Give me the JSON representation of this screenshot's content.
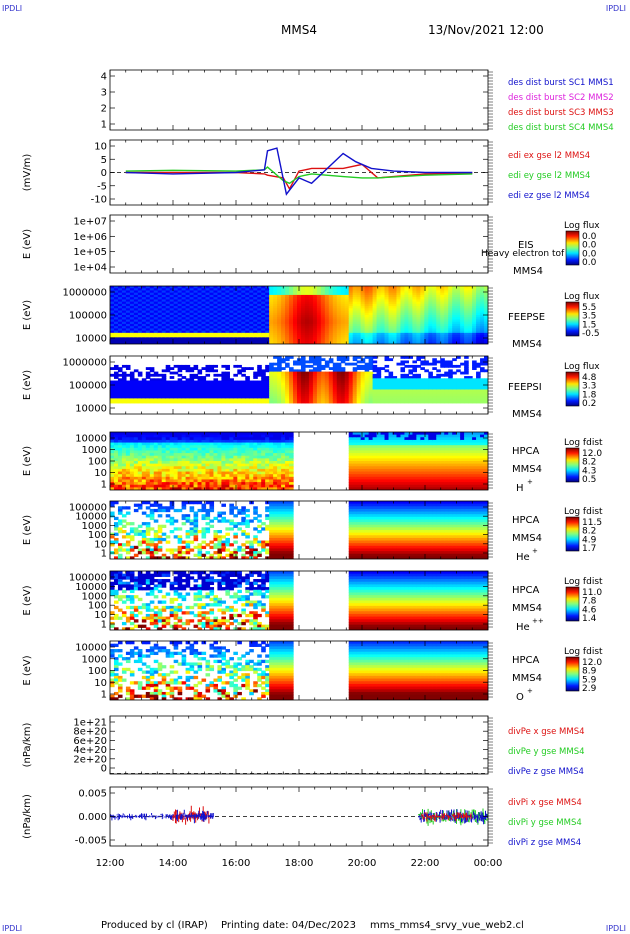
{
  "header": {
    "corner_tl": "IPDLI",
    "corner_tr": "IPDLI",
    "corner_bl": "IPDLI",
    "corner_br": "IPDLI",
    "spacecraft": "MMS4",
    "date_time": "13/Nov/2021 12:00"
  },
  "footer": {
    "produced_by": "Produced by cl (IRAP)",
    "printing_date": "Printing date: 04/Dec/2023",
    "file_name": "mms_mms4_srvy_vue_web2.cl"
  },
  "colors": {
    "blue": "#1111cc",
    "magenta": "#dd22dd",
    "red": "#dd1111",
    "green": "#22cc22",
    "link": "#3333cc"
  },
  "chart_data": {
    "type": "line",
    "x_axis": {
      "ticks": [
        "12:00",
        "14:00",
        "16:00",
        "18:00",
        "20:00",
        "22:00",
        "00:00"
      ],
      "range_hours": [
        0,
        12
      ]
    },
    "panels": [
      {
        "id": "burst",
        "type": "line",
        "ylabel": "",
        "yticks": [
          "4",
          "3",
          "2",
          "1"
        ],
        "ylim": [
          0.7,
          4.3
        ],
        "legend": [
          {
            "text": "des dist burst SC1 MMS1",
            "color": "#1111cc"
          },
          {
            "text": "des dist burst SC2 MMS2",
            "color": "#dd22dd"
          },
          {
            "text": "des dist burst SC3 MMS3",
            "color": "#dd1111"
          },
          {
            "text": "des dist burst SC4 MMS4",
            "color": "#22cc22"
          }
        ]
      },
      {
        "id": "efield",
        "type": "line",
        "ylabel": "(mV/m)",
        "yticks": [
          "10",
          "5",
          "0",
          "-5",
          "-10"
        ],
        "ylim": [
          -12,
          12
        ],
        "legend": [
          {
            "text": "edi ex gse l2 MMS4",
            "color": "#dd1111"
          },
          {
            "text": "edi ey gse l2 MMS4",
            "color": "#22cc22"
          },
          {
            "text": "edi ez gse l2 MMS4",
            "color": "#1111cc"
          }
        ],
        "series": [
          {
            "name": "edi ex gse l2 MMS4",
            "color": "#dd1111",
            "x": [
              0.5,
              2.0,
              4.0,
              4.9,
              5.0,
              5.5,
              5.7,
              6.0,
              6.2,
              6.4,
              7.4,
              8.0,
              8.5,
              10,
              11.5
            ],
            "y": [
              0,
              0,
              0,
              -0.5,
              -1,
              -2,
              -6,
              0.5,
              1,
              1.5,
              1.5,
              3,
              -2,
              -0.5,
              -0.2
            ]
          },
          {
            "name": "edi ey gse l2 MMS4",
            "color": "#22cc22",
            "x": [
              0.5,
              2.0,
              4.0,
              4.9,
              5.0,
              5.5,
              5.7,
              6.0,
              6.2,
              6.4,
              7.4,
              8.0,
              8.5,
              10,
              11.5
            ],
            "y": [
              0.5,
              0.8,
              0.5,
              1,
              2,
              -3,
              -4,
              -1.5,
              -1,
              -0.5,
              -1.5,
              -2,
              -2,
              -1,
              -0.5
            ]
          },
          {
            "name": "edi ez gse l2 MMS4",
            "color": "#1111cc",
            "x": [
              0.5,
              2.0,
              4.0,
              4.9,
              5.0,
              5.3,
              5.6,
              6.0,
              6.2,
              6.4,
              7.4,
              7.8,
              8.3,
              9.0,
              10,
              11.5
            ],
            "y": [
              0,
              -0.5,
              0,
              1,
              8,
              9,
              -8,
              -2,
              -3,
              -4,
              7,
              4,
              1.5,
              0.5,
              0,
              0
            ]
          }
        ]
      },
      {
        "id": "eis",
        "type": "heatmap",
        "ylabel": "E (eV)",
        "yticks": [
          "1e+07",
          "1e+06",
          "1e+05",
          "1e+04"
        ],
        "instrument": "EIS",
        "instrument_extra": "Heavy electron tof",
        "spacecraft": "MMS4",
        "colorbar_title": "Log flux",
        "colorbar_ticks": [
          "0.0",
          "0.0",
          "0.0",
          "0.0"
        ]
      },
      {
        "id": "feepse",
        "type": "heatmap",
        "ylabel": "E (eV)",
        "yticks": [
          "1000000",
          "100000",
          "10000"
        ],
        "instrument": "FEEPSE",
        "spacecraft": "MMS4",
        "colorbar_title": "Log flux",
        "colorbar_ticks": [
          "5.5",
          "3.5",
          "1.5",
          "-0.5"
        ]
      },
      {
        "id": "feepsi",
        "type": "heatmap",
        "ylabel": "E (eV)",
        "yticks": [
          "1000000",
          "100000",
          "10000"
        ],
        "instrument": "FEEPSI",
        "spacecraft": "MMS4",
        "colorbar_title": "Log flux",
        "colorbar_ticks": [
          "4.8",
          "3.3",
          "1.8",
          "0.2"
        ]
      },
      {
        "id": "hpca_h",
        "type": "heatmap",
        "ylabel": "E (eV)",
        "yticks": [
          "10000",
          "1000",
          "100",
          "10",
          "1"
        ],
        "instrument": "HPCA",
        "spacecraft": "MMS4",
        "species": "H",
        "species_charge": "+",
        "colorbar_title": "Log fdist",
        "colorbar_ticks": [
          "12.0",
          "8.2",
          "4.3",
          "0.5"
        ]
      },
      {
        "id": "hpca_he",
        "type": "heatmap",
        "ylabel": "E (eV)",
        "yticks": [
          "100000",
          "10000",
          "1000",
          "100",
          "10",
          "1"
        ],
        "instrument": "HPCA",
        "spacecraft": "MMS4",
        "species": "He",
        "species_charge": "+",
        "colorbar_title": "Log fdist",
        "colorbar_ticks": [
          "11.5",
          "8.2",
          "4.9",
          "1.7"
        ]
      },
      {
        "id": "hpca_hepp",
        "type": "heatmap",
        "ylabel": "E (eV)",
        "yticks": [
          "100000",
          "10000",
          "1000",
          "100",
          "10",
          "1"
        ],
        "instrument": "HPCA",
        "spacecraft": "MMS4",
        "species": "He",
        "species_charge": "++",
        "colorbar_title": "Log fdist",
        "colorbar_ticks": [
          "11.0",
          "7.8",
          "4.6",
          "1.4"
        ]
      },
      {
        "id": "hpca_o",
        "type": "heatmap",
        "ylabel": "E (eV)",
        "yticks": [
          "10000",
          "1000",
          "100",
          "10",
          "1"
        ],
        "instrument": "HPCA",
        "spacecraft": "MMS4",
        "species": "O",
        "species_charge": "+",
        "colorbar_title": "Log fdist",
        "colorbar_ticks": [
          "12.0",
          "8.9",
          "5.9",
          "2.9"
        ]
      },
      {
        "id": "divpe",
        "type": "line",
        "ylabel": "(nPa/km)",
        "yticks": [
          "1e+21",
          "8e+20",
          "6e+20",
          "4e+20",
          "2e+20",
          "0"
        ],
        "ylim": [
          -1e+19,
          1.08e+21
        ],
        "legend": [
          {
            "text": "divPe x gse MMS4",
            "color": "#dd1111"
          },
          {
            "text": "divPe y gse MMS4",
            "color": "#22cc22"
          },
          {
            "text": "divPe z gse MMS4",
            "color": "#1111cc"
          }
        ]
      },
      {
        "id": "divpi",
        "type": "line",
        "ylabel": "(nPa/km)",
        "yticks": [
          "0.005",
          "0.000",
          "-0.005"
        ],
        "ylim": [
          -0.0075,
          0.0075
        ],
        "legend": [
          {
            "text": "divPi x gse MMS4",
            "color": "#dd1111"
          },
          {
            "text": "divPi y gse MMS4",
            "color": "#22cc22"
          },
          {
            "text": "divPi z gse MMS4",
            "color": "#1111cc"
          }
        ]
      }
    ]
  }
}
